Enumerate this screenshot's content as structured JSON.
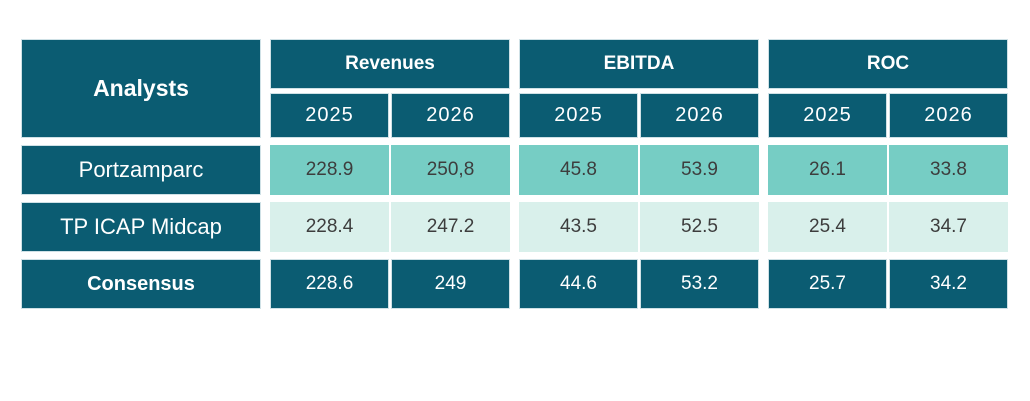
{
  "colors": {
    "page_bg": "#ffffff",
    "dark_teal": "#0b5c72",
    "medium_teal": "#76cdc4",
    "light_teal": "#d9f0eb",
    "data_text": "#3d3d3d",
    "cell_outline": "#cfe1e6"
  },
  "table": {
    "row_header_title": "Analysts",
    "groups": [
      {
        "label": "Revenues",
        "years": [
          "2025",
          "2026"
        ]
      },
      {
        "label": "EBITDA",
        "years": [
          "2025",
          "2026"
        ]
      },
      {
        "label": "ROC",
        "years": [
          "2025",
          "2026"
        ]
      }
    ],
    "rows": [
      {
        "label": "Portzamparc",
        "cells": [
          "228.9",
          "250,8",
          "45.8",
          "53.9",
          "26.1",
          "33.8"
        ]
      },
      {
        "label": "TP ICAP Midcap",
        "cells": [
          "228.4",
          "247.2",
          "43.5",
          "52.5",
          "25.4",
          "34.7"
        ]
      },
      {
        "label": "Consensus",
        "cells": [
          "228.6",
          "249",
          "44.6",
          "53.2",
          "25.7",
          "34.2"
        ]
      }
    ]
  }
}
